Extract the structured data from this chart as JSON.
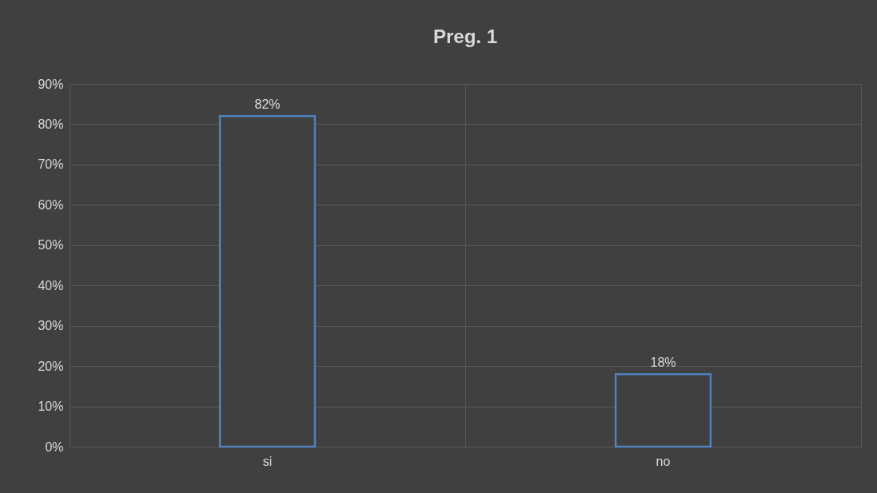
{
  "chart_data": {
    "type": "bar",
    "title": "Preg. 1",
    "categories": [
      "si",
      "no"
    ],
    "values": [
      82,
      18
    ],
    "color": "#4f81bd",
    "value_labels": [
      "82%",
      "18%"
    ],
    "ylim": [
      0,
      90
    ],
    "yticks": [
      {
        "value": 0,
        "label": "0%"
      },
      {
        "value": 10,
        "label": "10%"
      },
      {
        "value": 20,
        "label": "20%"
      },
      {
        "value": 30,
        "label": "30%"
      },
      {
        "value": 40,
        "label": "40%"
      },
      {
        "value": 50,
        "label": "50%"
      },
      {
        "value": 60,
        "label": "60%"
      },
      {
        "value": 70,
        "label": "70%"
      },
      {
        "value": 80,
        "label": "80%"
      },
      {
        "value": 90,
        "label": "90%"
      }
    ],
    "grid": true
  }
}
